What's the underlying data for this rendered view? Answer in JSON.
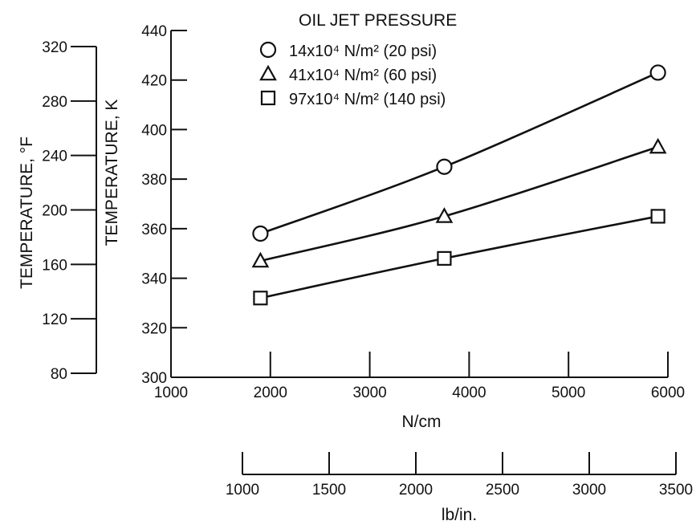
{
  "chart_data": {
    "type": "line",
    "legend": {
      "title": "OIL JET PRESSURE",
      "placement": "top-right"
    },
    "x": [
      1900,
      3750,
      5900
    ],
    "xlabel": "N/cm",
    "xlim": [
      1000,
      6000
    ],
    "xticks": [
      "1000",
      "2000",
      "3000",
      "4000",
      "5000",
      "6000"
    ],
    "secondary_x": {
      "label": "lb/in.",
      "ticks": [
        "1000",
        "1500",
        "2000",
        "2500",
        "3000",
        "3500"
      ]
    },
    "ylabel": "TEMPERATURE, K",
    "ylim": [
      300,
      440
    ],
    "yticks": [
      "300",
      "320",
      "340",
      "360",
      "380",
      "400",
      "420",
      "440"
    ],
    "secondary_y": {
      "label": "TEMPERATURE, °F",
      "ticks": [
        "80",
        "120",
        "160",
        "200",
        "240",
        "280",
        "320"
      ]
    },
    "series": [
      {
        "name": "14x10⁴ N/m² (20 psi)",
        "marker": "circle",
        "values": [
          358,
          385,
          423
        ]
      },
      {
        "name": "41x10⁴ N/m² (60 psi)",
        "marker": "triangle",
        "values": [
          347,
          365,
          393
        ]
      },
      {
        "name": "97x10⁴ N/m² (140 psi)",
        "marker": "square",
        "values": [
          332,
          348,
          365
        ]
      }
    ]
  }
}
